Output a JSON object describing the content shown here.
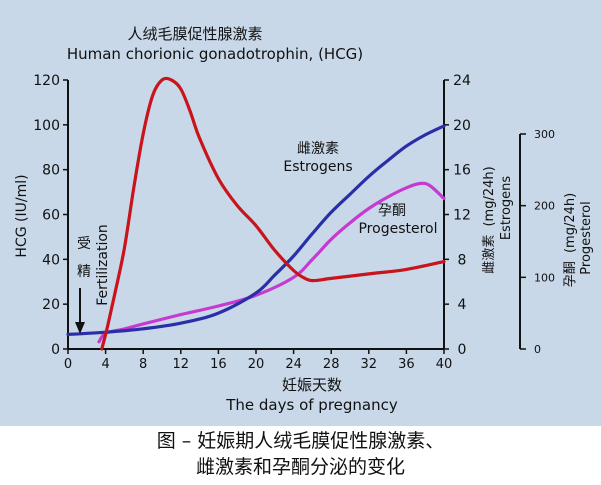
{
  "colors": {
    "panel_bg": "#c8d8e8",
    "hcg": "#c8141a",
    "estrogens": "#2a2fa8",
    "progesterone": "#c63ad2",
    "axis": "#111111"
  },
  "caption": {
    "line1": "图 – 妊娠期人绒毛膜促性腺激素、",
    "line2": "雌激素和孕酮分泌的变化"
  },
  "chart_data": {
    "type": "line",
    "title_cn": "人绒毛膜促性腺激素",
    "title_en": "Human chorionic gonadotrophin, (HCG)",
    "x_axis": {
      "label_cn": "妊娠天数",
      "label_en": "The days of pregnancy",
      "range": [
        0,
        40
      ],
      "ticks": [
        "0",
        "4",
        "8",
        "12",
        "16",
        "20",
        "24",
        "28",
        "32",
        "36",
        "40"
      ]
    },
    "y_axes": {
      "hcg": {
        "label": "HCG (IU/ml)",
        "range": [
          0,
          120
        ],
        "ticks": [
          "0",
          "20",
          "40",
          "60",
          "80",
          "100",
          "120"
        ]
      },
      "estrogens": {
        "label_cn": "雌激素",
        "label_unit": "(mg/24h)",
        "label_en": "Estrogens",
        "range": [
          0,
          24
        ],
        "ticks": [
          "0",
          "4",
          "8",
          "12",
          "16",
          "20",
          "24"
        ]
      },
      "progesterone": {
        "label_cn": "孕酮",
        "label_unit": "(mg/24h)",
        "label_en": "Progesterol",
        "range": [
          0,
          300
        ],
        "ticks": [
          "0",
          "100",
          "200",
          "300"
        ]
      }
    },
    "series": [
      {
        "key": "hcg",
        "axis": "hcg",
        "color": "#c8141a",
        "points": [
          [
            3.6,
            0
          ],
          [
            4.2,
            10
          ],
          [
            5,
            25
          ],
          [
            6,
            45
          ],
          [
            7,
            72
          ],
          [
            8,
            96
          ],
          [
            9,
            113
          ],
          [
            10,
            120
          ],
          [
            11,
            120
          ],
          [
            12,
            116
          ],
          [
            13,
            106
          ],
          [
            14,
            94
          ],
          [
            16,
            76
          ],
          [
            18,
            64
          ],
          [
            20,
            55
          ],
          [
            22,
            44
          ],
          [
            24,
            35
          ],
          [
            25,
            32
          ],
          [
            26,
            30.5
          ],
          [
            28,
            31.5
          ],
          [
            32,
            33.5
          ],
          [
            36,
            35.5
          ],
          [
            40,
            39
          ]
        ]
      },
      {
        "key": "estrogens",
        "axis": "estrogens",
        "label_cn": "雌激素",
        "label_en": "Estrogens",
        "color": "#2a2fa8",
        "points": [
          [
            0,
            1.3
          ],
          [
            4,
            1.5
          ],
          [
            8,
            1.8
          ],
          [
            12,
            2.3
          ],
          [
            16,
            3.2
          ],
          [
            20,
            5
          ],
          [
            22,
            6.6
          ],
          [
            24,
            8.3
          ],
          [
            26,
            10.3
          ],
          [
            28,
            12.2
          ],
          [
            30,
            13.8
          ],
          [
            32,
            15.4
          ],
          [
            34,
            16.8
          ],
          [
            36,
            18.1
          ],
          [
            38,
            19.1
          ],
          [
            40,
            19.9
          ]
        ]
      },
      {
        "key": "progesterone",
        "axis": "progesterone",
        "label_cn": "孕酮",
        "label_en": "Progesterol",
        "color": "#c63ad2",
        "points": [
          [
            3.3,
            10
          ],
          [
            4,
            22
          ],
          [
            6,
            28
          ],
          [
            8,
            35
          ],
          [
            12,
            48
          ],
          [
            16,
            60
          ],
          [
            20,
            75
          ],
          [
            24,
            100
          ],
          [
            26,
            125
          ],
          [
            28,
            153
          ],
          [
            30,
            176
          ],
          [
            32,
            196
          ],
          [
            34,
            212
          ],
          [
            36,
            225
          ],
          [
            37.5,
            231
          ],
          [
            38.5,
            228
          ],
          [
            40,
            210
          ]
        ]
      }
    ],
    "annotation": {
      "text_cn_1": "受",
      "text_cn_2": "精",
      "text_en": "Fertilization"
    },
    "grid": false
  }
}
